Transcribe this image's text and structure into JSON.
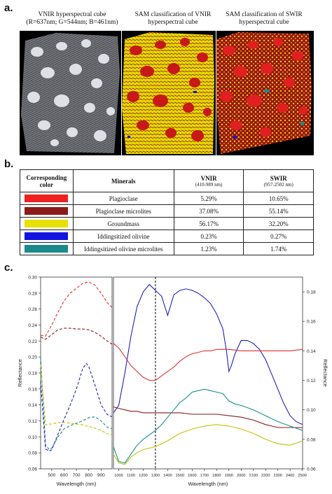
{
  "panel_a": {
    "letter": "a.",
    "images": [
      {
        "title_line1": "VNIR hyperspectral cube",
        "title_line2": "(R=637nm; G=544nm; B=461nm)"
      },
      {
        "title_line1": "SAM classification of VNIR",
        "title_line2": "hyperspectral cube"
      },
      {
        "title_line1": "SAM classification of SWIR",
        "title_line2": "hyperspectral cube"
      }
    ]
  },
  "panel_b": {
    "letter": "b.",
    "headers": {
      "color": "Corresponding color",
      "minerals": "Minerals",
      "vnir": "VNIR",
      "vnir_range": "(410-989 nm)",
      "swir": "SWIR",
      "swir_range": "(957-2502 nm)"
    },
    "rows": [
      {
        "color": "#ee2020",
        "mineral": "Plagioclase",
        "vnir": "5.29%",
        "swir": "10.65%"
      },
      {
        "color": "#8b1a1a",
        "mineral": "Plagioclase microlites",
        "vnir": "37.08%",
        "swir": "55.14%"
      },
      {
        "color": "#e8e000",
        "mineral": "Groundmass",
        "vnir": "56.17%",
        "swir": "32.20%"
      },
      {
        "color": "#1414e0",
        "mineral": "Iddingsitized olivine",
        "vnir": "0.23%",
        "swir": "0.27%"
      },
      {
        "color": "#1a8a8a",
        "mineral": "Iddingsitized olivine microlites",
        "vnir": "1.23%",
        "swir": "1.74%"
      }
    ]
  },
  "panel_c": {
    "letter": "c."
  },
  "chart_data": [
    {
      "type": "line",
      "xlabel": "Wavelength (nm)",
      "ylabel": "Reflectance",
      "xlim": [
        410,
        989
      ],
      "ylim": [
        0.06,
        0.3
      ],
      "xticks": [
        500,
        600,
        700,
        800,
        900
      ],
      "yticks": [
        0.06,
        0.08,
        0.1,
        0.12,
        0.14,
        0.16,
        0.18,
        0.2,
        0.22,
        0.24,
        0.26,
        0.28,
        0.3
      ],
      "style": "dashed",
      "series": [
        {
          "color": "#e03030",
          "x": [
            410,
            450,
            500,
            550,
            600,
            650,
            700,
            750,
            800,
            850,
            900,
            950,
            989
          ],
          "y": [
            0.227,
            0.226,
            0.24,
            0.256,
            0.27,
            0.28,
            0.286,
            0.292,
            0.294,
            0.29,
            0.28,
            0.268,
            0.262
          ]
        },
        {
          "color": "#8b1a1a",
          "x": [
            410,
            450,
            500,
            550,
            600,
            650,
            700,
            750,
            800,
            850,
            900,
            950,
            989
          ],
          "y": [
            0.225,
            0.222,
            0.228,
            0.234,
            0.236,
            0.236,
            0.235,
            0.235,
            0.234,
            0.231,
            0.226,
            0.22,
            0.216
          ]
        },
        {
          "color": "#1a8a8a",
          "x": [
            410,
            450,
            480,
            500,
            550,
            600,
            650,
            700,
            750,
            800,
            850,
            900,
            950,
            989
          ],
          "y": [
            0.2,
            0.09,
            0.084,
            0.086,
            0.1,
            0.11,
            0.114,
            0.117,
            0.12,
            0.124,
            0.125,
            0.12,
            0.112,
            0.11
          ]
        },
        {
          "color": "#c8c000",
          "x": [
            410,
            450,
            480,
            500,
            550,
            600,
            650,
            700,
            750,
            800,
            850,
            900,
            950,
            989
          ],
          "y": [
            0.19,
            0.115,
            0.116,
            0.116,
            0.118,
            0.118,
            0.117,
            0.116,
            0.115,
            0.113,
            0.111,
            0.108,
            0.104,
            0.102
          ]
        },
        {
          "color": "#2020c0",
          "x": [
            410,
            450,
            480,
            500,
            550,
            600,
            650,
            700,
            750,
            780,
            800,
            850,
            900,
            950,
            989
          ],
          "y": [
            0.17,
            0.085,
            0.082,
            0.084,
            0.103,
            0.122,
            0.14,
            0.16,
            0.185,
            0.192,
            0.188,
            0.165,
            0.14,
            0.128,
            0.125
          ]
        }
      ]
    },
    {
      "type": "line",
      "xlabel": "Wavelength (nm)",
      "ylabel": "Reflectance",
      "xlim": [
        957,
        2502
      ],
      "ylim": [
        0.06,
        0.19
      ],
      "xticks": [
        1000,
        1100,
        1200,
        1300,
        1400,
        1500,
        1600,
        1700,
        1800,
        1900,
        2000,
        2100,
        2200,
        2300,
        2400,
        2500
      ],
      "yticks": [
        0.06,
        0.08,
        0.1,
        0.12,
        0.14,
        0.16,
        0.18
      ],
      "vline": 1300,
      "style": "solid",
      "series": [
        {
          "color": "#2020c0",
          "x": [
            957,
            1000,
            1050,
            1100,
            1150,
            1200,
            1250,
            1300,
            1350,
            1400,
            1450,
            1500,
            1550,
            1600,
            1650,
            1700,
            1750,
            1800,
            1850,
            1880,
            1900,
            1920,
            1950,
            2000,
            2050,
            2100,
            2150,
            2200,
            2250,
            2300,
            2350,
            2400,
            2450,
            2502
          ],
          "y": [
            0.098,
            0.103,
            0.125,
            0.15,
            0.17,
            0.18,
            0.185,
            0.181,
            0.177,
            0.164,
            0.178,
            0.181,
            0.182,
            0.181,
            0.179,
            0.176,
            0.172,
            0.165,
            0.155,
            0.14,
            0.126,
            0.13,
            0.138,
            0.147,
            0.147,
            0.145,
            0.141,
            0.134,
            0.124,
            0.114,
            0.104,
            0.096,
            0.092,
            0.09
          ]
        },
        {
          "color": "#e03030",
          "x": [
            957,
            1000,
            1050,
            1100,
            1150,
            1200,
            1250,
            1300,
            1350,
            1400,
            1450,
            1500,
            1550,
            1600,
            1650,
            1700,
            1750,
            1800,
            1900,
            2000,
            2100,
            2200,
            2300,
            2400,
            2502
          ],
          "y": [
            0.145,
            0.142,
            0.136,
            0.13,
            0.126,
            0.122,
            0.12,
            0.12,
            0.123,
            0.126,
            0.129,
            0.133,
            0.136,
            0.138,
            0.139,
            0.14,
            0.14,
            0.141,
            0.141,
            0.14,
            0.14,
            0.14,
            0.14,
            0.14,
            0.141
          ]
        },
        {
          "color": "#8b1a1a",
          "x": [
            957,
            1000,
            1050,
            1100,
            1150,
            1200,
            1300,
            1400,
            1500,
            1600,
            1700,
            1800,
            1900,
            2000,
            2100,
            2200,
            2300,
            2400,
            2502
          ],
          "y": [
            0.102,
            0.101,
            0.1,
            0.099,
            0.099,
            0.098,
            0.098,
            0.098,
            0.098,
            0.097,
            0.097,
            0.097,
            0.096,
            0.095,
            0.093,
            0.09,
            0.088,
            0.088,
            0.088
          ]
        },
        {
          "color": "#1a9090",
          "x": [
            957,
            1000,
            1050,
            1100,
            1150,
            1200,
            1250,
            1300,
            1350,
            1400,
            1450,
            1500,
            1550,
            1600,
            1650,
            1700,
            1750,
            1800,
            1850,
            1900,
            1950,
            2000,
            2100,
            2200,
            2300,
            2400,
            2502
          ],
          "y": [
            0.075,
            0.065,
            0.064,
            0.07,
            0.076,
            0.08,
            0.083,
            0.086,
            0.09,
            0.095,
            0.1,
            0.105,
            0.108,
            0.112,
            0.113,
            0.114,
            0.113,
            0.112,
            0.111,
            0.106,
            0.104,
            0.103,
            0.1,
            0.096,
            0.092,
            0.089,
            0.086
          ]
        },
        {
          "color": "#c8c000",
          "x": [
            957,
            1000,
            1050,
            1100,
            1150,
            1200,
            1300,
            1400,
            1500,
            1600,
            1700,
            1800,
            1900,
            2000,
            2100,
            2200,
            2300,
            2400,
            2502
          ],
          "y": [
            0.07,
            0.064,
            0.063,
            0.068,
            0.071,
            0.073,
            0.075,
            0.079,
            0.084,
            0.087,
            0.089,
            0.09,
            0.089,
            0.087,
            0.084,
            0.08,
            0.077,
            0.076,
            0.079
          ]
        }
      ]
    }
  ]
}
